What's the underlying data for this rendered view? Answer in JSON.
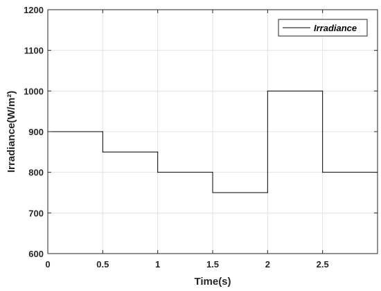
{
  "chart_data": {
    "type": "line",
    "title": "",
    "xlabel": "Time(s)",
    "ylabel": "Irradiance(W/m²)",
    "xlim": [
      0,
      3
    ],
    "ylim": [
      600,
      1200
    ],
    "x_ticks": [
      0,
      0.5,
      1,
      1.5,
      2,
      2.5
    ],
    "x_tick_labels": [
      "0",
      "0.5",
      "1",
      "1.5",
      "2",
      "2.5"
    ],
    "y_ticks": [
      600,
      700,
      800,
      900,
      1000,
      1100,
      1200
    ],
    "y_tick_labels": [
      "600",
      "700",
      "800",
      "900",
      "1000",
      "1100",
      "1200"
    ],
    "grid": true,
    "legend_position": "top-right",
    "series": [
      {
        "name": "Irradiance",
        "color": "#000000",
        "style": "step",
        "x": [
          0,
          0.5,
          0.5,
          1,
          1,
          1.5,
          1.5,
          2,
          2,
          2.5,
          2.5,
          3
        ],
        "y": [
          900,
          900,
          850,
          850,
          800,
          800,
          750,
          750,
          1000,
          1000,
          800,
          800
        ]
      }
    ]
  }
}
